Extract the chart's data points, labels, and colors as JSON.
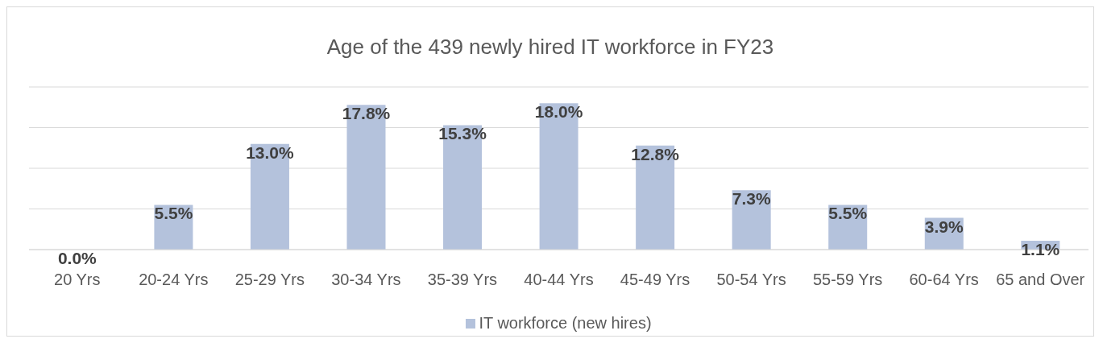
{
  "chart_data": {
    "type": "bar",
    "title": "Age of the 439 newly hired IT workforce in FY23",
    "categories": [
      "20 Yrs",
      "20-24 Yrs",
      "25-29 Yrs",
      "30-34 Yrs",
      "35-39 Yrs",
      "40-44 Yrs",
      "45-49 Yrs",
      "50-54 Yrs",
      "55-59 Yrs",
      "60-64 Yrs",
      "65 and Over"
    ],
    "series": [
      {
        "name": "IT workforce (new hires)",
        "color": "#b4c2dc",
        "values": [
          0.0,
          5.5,
          13.0,
          17.8,
          15.3,
          18.0,
          12.8,
          7.3,
          5.5,
          3.9,
          1.1
        ],
        "value_labels": [
          "0.0%",
          "5.5%",
          "13.0%",
          "17.8%",
          "15.3%",
          "18.0%",
          "12.8%",
          "7.3%",
          "5.5%",
          "3.9%",
          "1.1%"
        ]
      }
    ],
    "tick_labels": "x",
    "grid": "y",
    "legend": "bottom"
  }
}
